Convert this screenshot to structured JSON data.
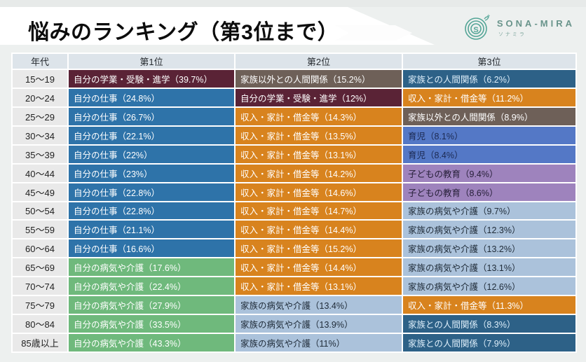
{
  "title": "悩みのランキング（第3位まで）",
  "logo": {
    "brand": "SONA-MIRA",
    "brand_sub": "ソナミラ",
    "accent_color": "#53a596",
    "icon": "spiral-s-sprout"
  },
  "chart_data": {
    "type": "table",
    "title": "悩みのランキング（第3位まで）",
    "columns": [
      "年代",
      "第1位",
      "第2位",
      "第3位"
    ],
    "header_bg": "#dde4ea",
    "age_col_bg": "#e9e9e9",
    "categories": {
      "work": {
        "label": "自分の仕事",
        "bg": "#2e73a9",
        "fg": "#ffffff"
      },
      "study": {
        "label": "自分の学業・受験・進学",
        "bg": "#5a2336",
        "fg": "#ffffff"
      },
      "income": {
        "label": "収入・家計・借金等",
        "bg": "#d8831e",
        "fg": "#ffffff"
      },
      "nonfamily": {
        "label": "家族以外との人間関係",
        "bg": "#6e6058",
        "fg": "#ffffff"
      },
      "familyrel": {
        "label": "家族との人間関係",
        "bg": "#2d6187",
        "fg": "#ddeefa"
      },
      "childcare": {
        "label": "育児",
        "bg": "#5478c6",
        "fg": "#1c2a52"
      },
      "education": {
        "label": "子どもの教育",
        "bg": "#9e83bd",
        "fg": "#272039"
      },
      "famillness": {
        "label": "家族の病気や介護",
        "bg": "#abc2db",
        "fg": "#212d3a"
      },
      "selfillness": {
        "label": "自分の病気や介護",
        "bg": "#6fb97c",
        "fg": "#ffffff"
      }
    },
    "rows": [
      {
        "age": "15〜19",
        "ranks": [
          {
            "cat": "study",
            "pct": "39.7%"
          },
          {
            "cat": "nonfamily",
            "pct": "15.2%"
          },
          {
            "cat": "familyrel",
            "pct": "6.2%"
          }
        ]
      },
      {
        "age": "20〜24",
        "ranks": [
          {
            "cat": "work",
            "pct": "24.8%"
          },
          {
            "cat": "study",
            "pct": "12%"
          },
          {
            "cat": "income",
            "pct": "11.2%"
          }
        ]
      },
      {
        "age": "25〜29",
        "ranks": [
          {
            "cat": "work",
            "pct": "26.7%"
          },
          {
            "cat": "income",
            "pct": "14.3%"
          },
          {
            "cat": "nonfamily",
            "pct": "8.9%"
          }
        ]
      },
      {
        "age": "30〜34",
        "ranks": [
          {
            "cat": "work",
            "pct": "22.1%"
          },
          {
            "cat": "income",
            "pct": "13.5%"
          },
          {
            "cat": "childcare",
            "pct": "8.1%"
          }
        ]
      },
      {
        "age": "35〜39",
        "ranks": [
          {
            "cat": "work",
            "pct": "22%"
          },
          {
            "cat": "income",
            "pct": "13.1%"
          },
          {
            "cat": "childcare",
            "pct": "8.4%"
          }
        ]
      },
      {
        "age": "40〜44",
        "ranks": [
          {
            "cat": "work",
            "pct": "23%"
          },
          {
            "cat": "income",
            "pct": "14.2%"
          },
          {
            "cat": "education",
            "pct": "9.4%"
          }
        ]
      },
      {
        "age": "45〜49",
        "ranks": [
          {
            "cat": "work",
            "pct": "22.8%"
          },
          {
            "cat": "income",
            "pct": "14.6%"
          },
          {
            "cat": "education",
            "pct": "8.6%"
          }
        ]
      },
      {
        "age": "50〜54",
        "ranks": [
          {
            "cat": "work",
            "pct": "22.8%"
          },
          {
            "cat": "income",
            "pct": "14.7%"
          },
          {
            "cat": "famillness",
            "pct": "9.7%"
          }
        ]
      },
      {
        "age": "55〜59",
        "ranks": [
          {
            "cat": "work",
            "pct": "21.1%"
          },
          {
            "cat": "income",
            "pct": "14.4%"
          },
          {
            "cat": "famillness",
            "pct": "12.3%"
          }
        ]
      },
      {
        "age": "60〜64",
        "ranks": [
          {
            "cat": "work",
            "pct": "16.6%"
          },
          {
            "cat": "income",
            "pct": "15.2%"
          },
          {
            "cat": "famillness",
            "pct": "13.2%"
          }
        ]
      },
      {
        "age": "65〜69",
        "ranks": [
          {
            "cat": "selfillness",
            "pct": "17.6%"
          },
          {
            "cat": "income",
            "pct": "14.4%"
          },
          {
            "cat": "famillness",
            "pct": "13.1%"
          }
        ]
      },
      {
        "age": "70〜74",
        "ranks": [
          {
            "cat": "selfillness",
            "pct": "22.4%"
          },
          {
            "cat": "income",
            "pct": "13.1%"
          },
          {
            "cat": "famillness",
            "pct": "12.6%"
          }
        ]
      },
      {
        "age": "75〜79",
        "ranks": [
          {
            "cat": "selfillness",
            "pct": "27.9%"
          },
          {
            "cat": "famillness",
            "pct": "13.4%"
          },
          {
            "cat": "income",
            "pct": "11.3%"
          }
        ]
      },
      {
        "age": "80〜84",
        "ranks": [
          {
            "cat": "selfillness",
            "pct": "33.5%"
          },
          {
            "cat": "famillness",
            "pct": "13.9%"
          },
          {
            "cat": "familyrel",
            "pct": "8.3%"
          }
        ]
      },
      {
        "age": "85歳以上",
        "ranks": [
          {
            "cat": "selfillness",
            "pct": "43.3%"
          },
          {
            "cat": "famillness",
            "pct": "11%"
          },
          {
            "cat": "familyrel",
            "pct": "7.9%"
          }
        ]
      }
    ]
  }
}
